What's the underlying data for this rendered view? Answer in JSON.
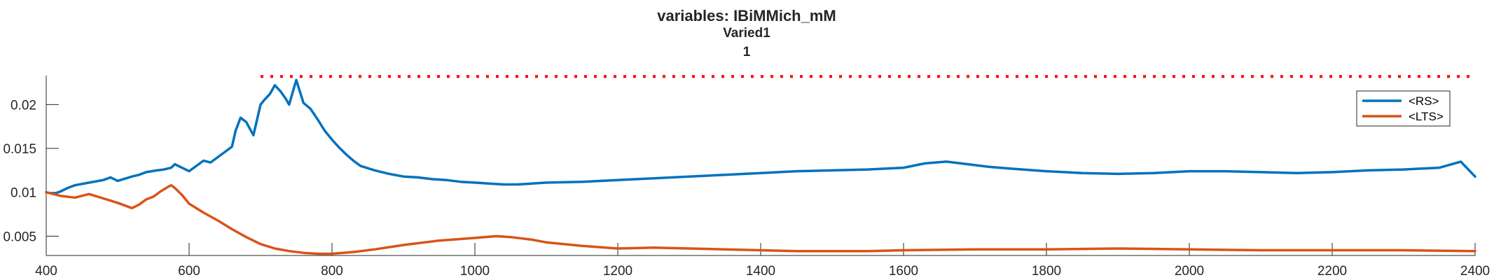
{
  "chart_data": {
    "type": "line",
    "title": [
      "variables: IBiMMich_mM",
      "Varied1",
      "1"
    ],
    "xlim": [
      400,
      2400
    ],
    "ylim": [
      0.0028,
      0.0233
    ],
    "xticks": [
      400,
      600,
      800,
      1000,
      1200,
      1400,
      1600,
      1800,
      2000,
      2200,
      2400
    ],
    "yticks": [
      0.005,
      0.01,
      0.015,
      0.02
    ],
    "ytick_labels": [
      "0.005",
      "0.01",
      "0.015",
      "0.02"
    ],
    "legend": {
      "position": "top-right",
      "entries": [
        "<RS>",
        "<LTS>"
      ]
    },
    "threshold_line": {
      "y": 0.0232,
      "x_start": 700,
      "x_end": 2400,
      "style": "dotted",
      "color": "#ff0000"
    },
    "series": [
      {
        "name": "<RS>",
        "color": "#0072bd",
        "x": [
          400,
          410,
          420,
          430,
          440,
          460,
          480,
          490,
          500,
          520,
          530,
          540,
          555,
          565,
          575,
          580,
          590,
          600,
          610,
          620,
          630,
          640,
          650,
          660,
          665,
          672,
          680,
          690,
          700,
          705,
          713,
          720,
          728,
          735,
          740,
          750,
          755,
          760,
          770,
          780,
          790,
          800,
          810,
          815,
          820,
          830,
          840,
          860,
          880,
          900,
          920,
          940,
          960,
          980,
          1000,
          1020,
          1040,
          1060,
          1080,
          1100,
          1150,
          1200,
          1250,
          1300,
          1350,
          1400,
          1450,
          1500,
          1550,
          1600,
          1630,
          1660,
          1690,
          1720,
          1750,
          1800,
          1850,
          1900,
          1950,
          2000,
          2050,
          2100,
          2150,
          2200,
          2250,
          2300,
          2350,
          2380,
          2400
        ],
        "y": [
          0.01,
          0.0098,
          0.0101,
          0.0105,
          0.0108,
          0.0111,
          0.0114,
          0.0117,
          0.0113,
          0.0118,
          0.012,
          0.0123,
          0.0125,
          0.0126,
          0.0128,
          0.0132,
          0.0128,
          0.0124,
          0.013,
          0.0136,
          0.0134,
          0.014,
          0.0146,
          0.0152,
          0.017,
          0.0185,
          0.018,
          0.0165,
          0.02,
          0.0205,
          0.0212,
          0.0222,
          0.0215,
          0.0207,
          0.02,
          0.0228,
          0.0215,
          0.0202,
          0.0195,
          0.0183,
          0.017,
          0.016,
          0.0151,
          0.0147,
          0.0143,
          0.0136,
          0.013,
          0.0125,
          0.0121,
          0.0118,
          0.0117,
          0.0115,
          0.0114,
          0.0112,
          0.0111,
          0.011,
          0.0109,
          0.0109,
          0.011,
          0.0111,
          0.0112,
          0.0114,
          0.0116,
          0.0118,
          0.012,
          0.0122,
          0.0124,
          0.0125,
          0.0126,
          0.0128,
          0.0133,
          0.0135,
          0.0132,
          0.0129,
          0.0127,
          0.0124,
          0.0122,
          0.0121,
          0.0122,
          0.0124,
          0.0124,
          0.0123,
          0.0122,
          0.0123,
          0.0125,
          0.0126,
          0.0128,
          0.0135,
          0.0118
        ]
      },
      {
        "name": "<LTS>",
        "color": "#d95319",
        "x": [
          400,
          420,
          440,
          460,
          480,
          500,
          520,
          530,
          540,
          550,
          560,
          570,
          575,
          580,
          590,
          600,
          620,
          640,
          660,
          680,
          700,
          720,
          740,
          760,
          780,
          800,
          830,
          860,
          900,
          950,
          1000,
          1030,
          1050,
          1080,
          1100,
          1150,
          1200,
          1250,
          1300,
          1350,
          1400,
          1450,
          1500,
          1550,
          1600,
          1700,
          1800,
          1900,
          2000,
          2100,
          2200,
          2300,
          2400
        ],
        "y": [
          0.01,
          0.0096,
          0.0094,
          0.0098,
          0.0093,
          0.0088,
          0.0082,
          0.0086,
          0.0092,
          0.0095,
          0.0101,
          0.0106,
          0.0108,
          0.0105,
          0.0097,
          0.0087,
          0.0077,
          0.0068,
          0.0058,
          0.0049,
          0.0041,
          0.0036,
          0.0033,
          0.0031,
          0.003,
          0.003,
          0.0032,
          0.0035,
          0.004,
          0.0045,
          0.0048,
          0.005,
          0.0049,
          0.0046,
          0.0043,
          0.0039,
          0.0036,
          0.0037,
          0.0036,
          0.0035,
          0.0034,
          0.0033,
          0.0033,
          0.0033,
          0.0034,
          0.0035,
          0.0035,
          0.0036,
          0.0035,
          0.0034,
          0.0034,
          0.0034,
          0.0033
        ]
      }
    ]
  }
}
